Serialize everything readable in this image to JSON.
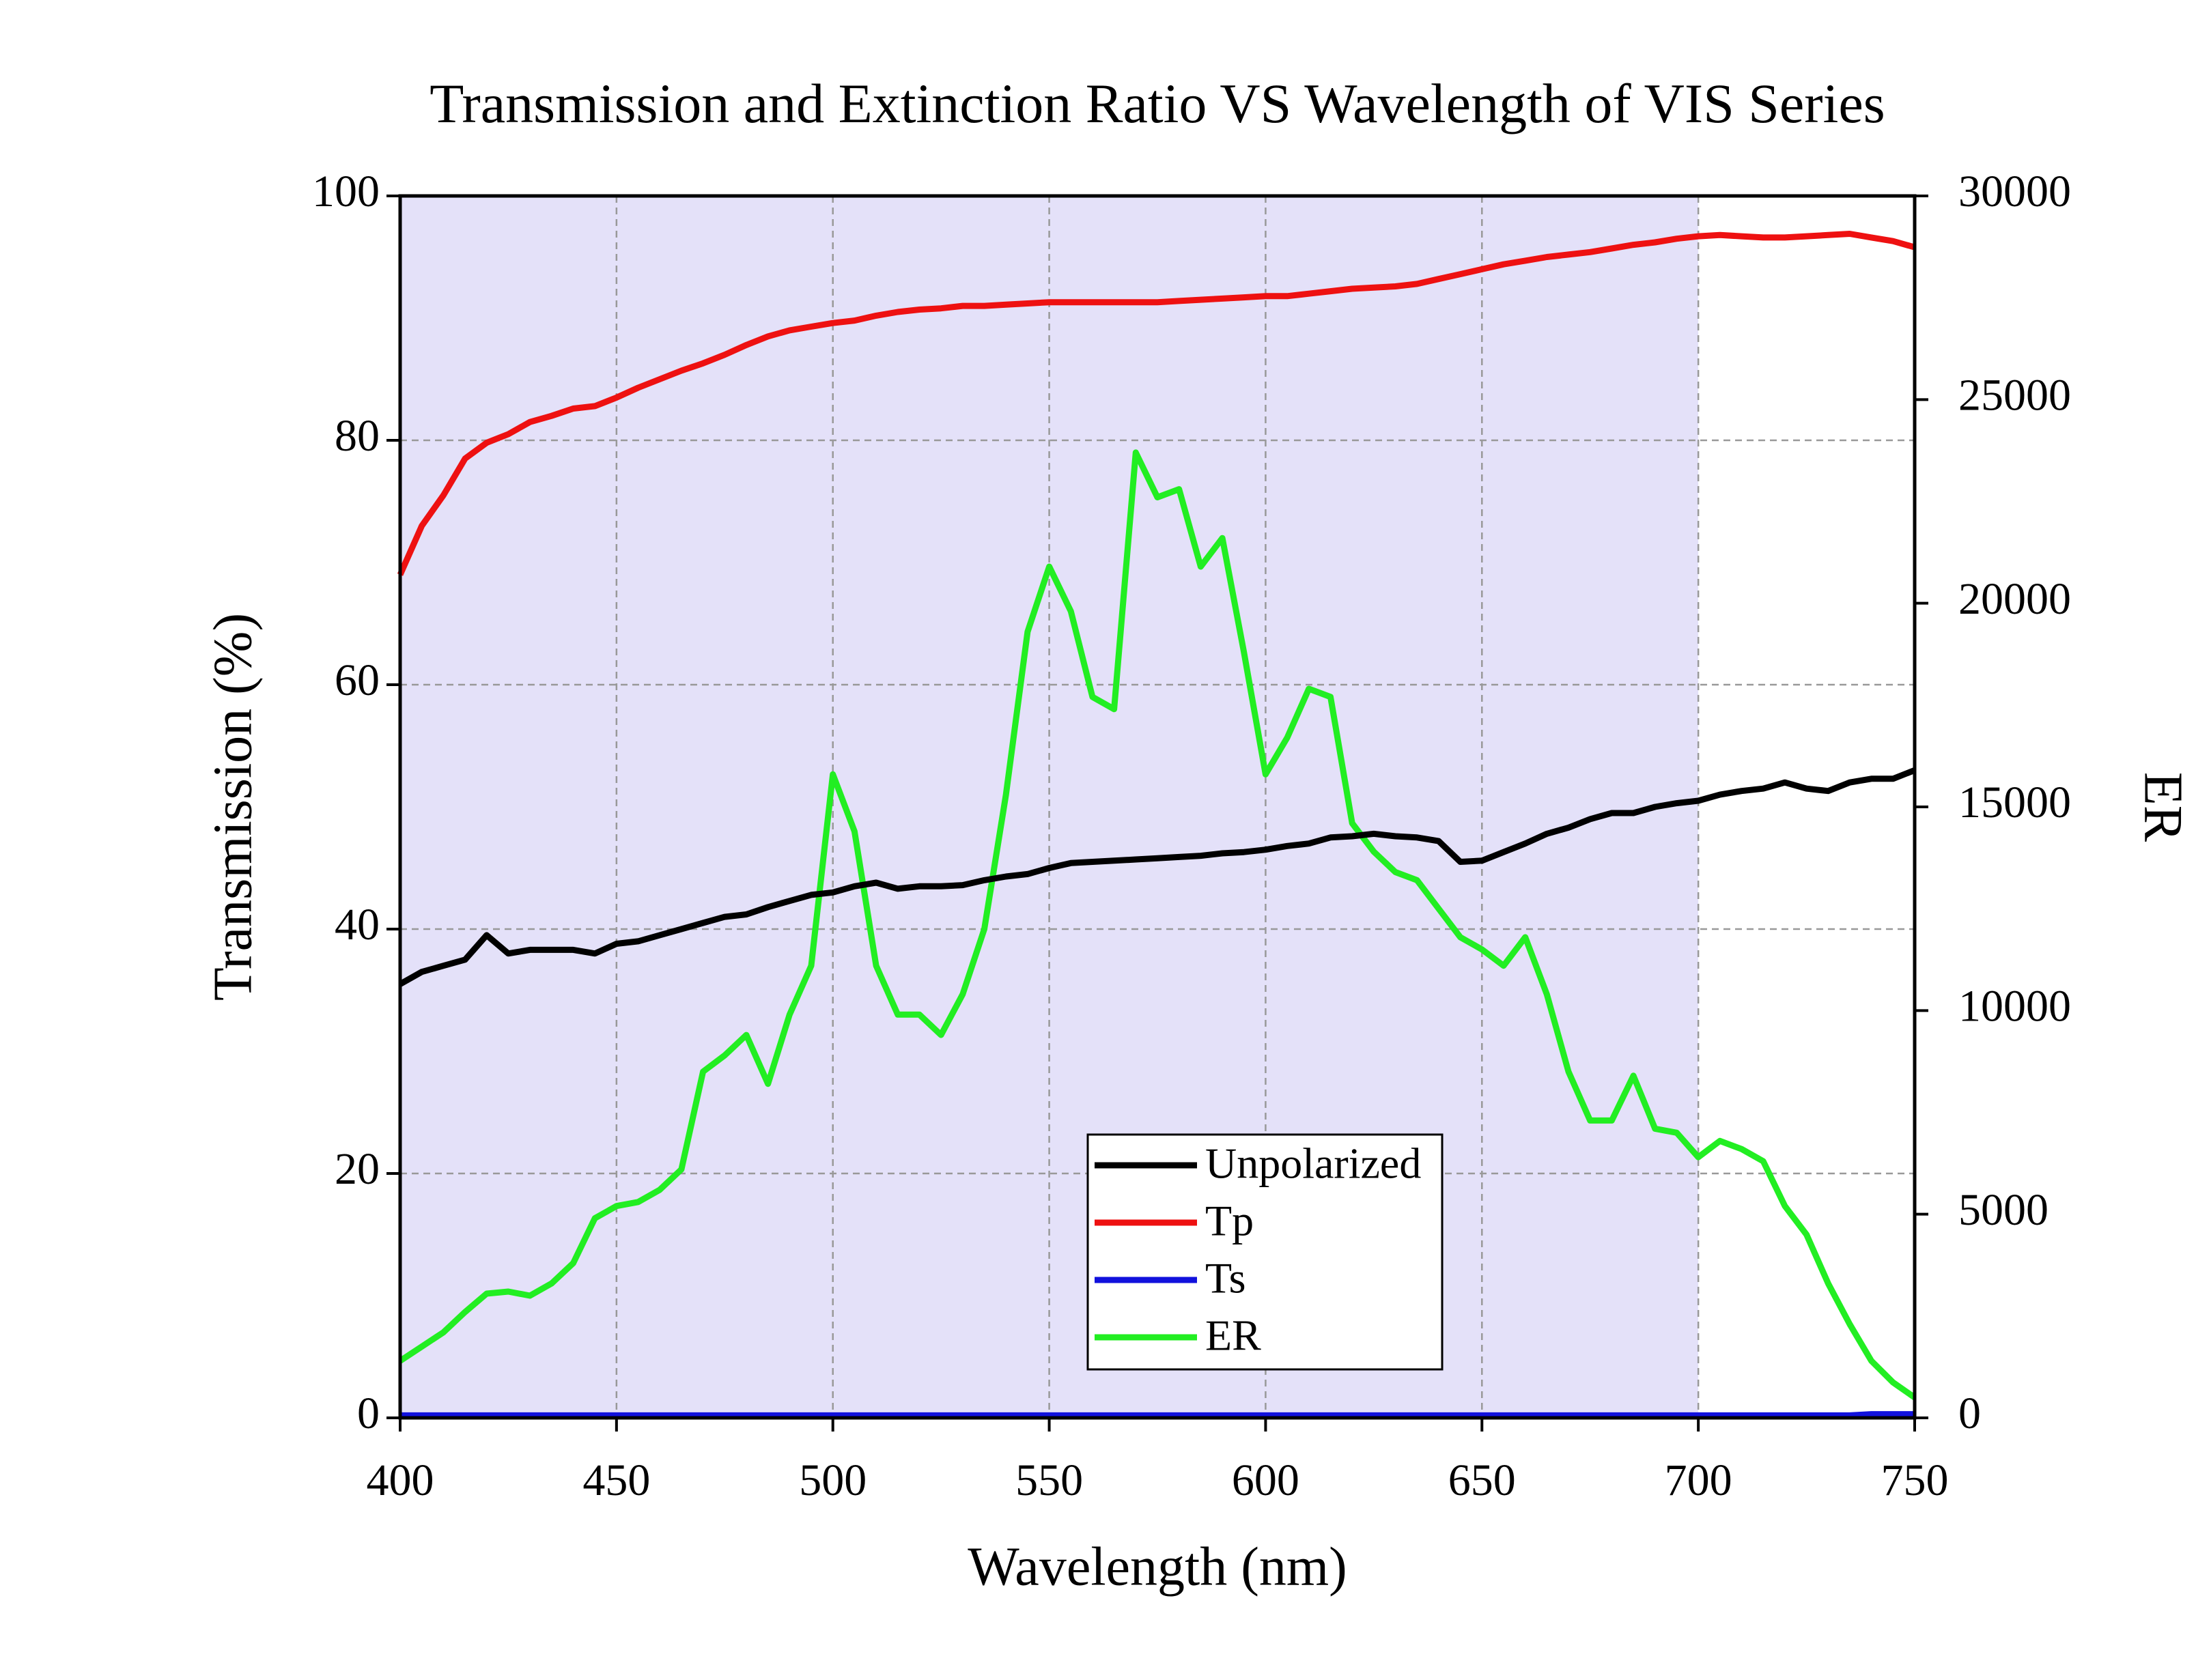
{
  "chart_data": {
    "type": "line",
    "title": "Transmission and Extinction Ratio VS Wavelength of VIS Series",
    "x_label": "Wavelength (nm)",
    "y_label": "Transmission (%)",
    "y2_label": "ER",
    "x": [
      400,
      405,
      410,
      415,
      420,
      425,
      430,
      435,
      440,
      445,
      450,
      455,
      460,
      465,
      470,
      475,
      480,
      485,
      490,
      495,
      500,
      505,
      510,
      515,
      520,
      525,
      530,
      535,
      540,
      545,
      550,
      555,
      560,
      565,
      570,
      575,
      580,
      585,
      590,
      595,
      600,
      605,
      610,
      615,
      620,
      625,
      630,
      635,
      640,
      645,
      650,
      655,
      660,
      665,
      670,
      675,
      680,
      685,
      690,
      695,
      700,
      705,
      710,
      715,
      720,
      725,
      730,
      735,
      740,
      745,
      750
    ],
    "series": [
      {
        "name": "Unpolarized",
        "color": "#000000",
        "values": [
          35.5,
          36.5,
          37,
          37.5,
          39.5,
          38,
          38.3,
          38.3,
          38.3,
          38,
          38.8,
          39,
          39.5,
          40,
          40.5,
          41,
          41.2,
          41.8,
          42.3,
          42.8,
          43,
          43.5,
          43.8,
          43.3,
          43.5,
          43.5,
          43.6,
          44,
          44.3,
          44.5,
          45,
          45.4,
          45.5,
          45.6,
          45.7,
          45.8,
          45.9,
          46,
          46.2,
          46.3,
          46.5,
          46.8,
          47,
          47.5,
          47.6,
          47.8,
          47.6,
          47.5,
          47.2,
          45.5,
          45.6,
          46.3,
          47,
          47.8,
          48.3,
          49,
          49.5,
          49.5,
          50,
          50.3,
          50.5,
          51,
          51.3,
          51.5,
          52,
          51.5,
          51.3,
          52,
          52.3,
          52.3,
          53
        ]
      },
      {
        "name": "Tp",
        "color": "#ee1111",
        "values": [
          69,
          73,
          75.5,
          78.5,
          79.8,
          80.5,
          81.5,
          82,
          82.6,
          82.8,
          83.5,
          84.3,
          85,
          85.7,
          86.3,
          87,
          87.8,
          88.5,
          89,
          89.3,
          89.6,
          89.8,
          90.2,
          90.5,
          90.7,
          90.8,
          91,
          91,
          91.1,
          91.2,
          91.3,
          91.3,
          91.3,
          91.3,
          91.3,
          91.3,
          91.4,
          91.5,
          91.6,
          91.7,
          91.8,
          91.8,
          92,
          92.2,
          92.4,
          92.5,
          92.6,
          92.8,
          93.2,
          93.6,
          94,
          94.4,
          94.7,
          95,
          95.2,
          95.4,
          95.7,
          96,
          96.2,
          96.5,
          96.7,
          96.8,
          96.7,
          96.6,
          96.6,
          96.7,
          96.8,
          96.9,
          96.6,
          96.3,
          95.8
        ]
      },
      {
        "name": "Ts",
        "color": "#1111dd",
        "values": [
          0.2,
          0.2,
          0.2,
          0.2,
          0.2,
          0.2,
          0.2,
          0.2,
          0.2,
          0.2,
          0.2,
          0.2,
          0.2,
          0.2,
          0.2,
          0.2,
          0.2,
          0.2,
          0.2,
          0.2,
          0.2,
          0.2,
          0.2,
          0.2,
          0.2,
          0.2,
          0.2,
          0.2,
          0.2,
          0.2,
          0.2,
          0.2,
          0.2,
          0.2,
          0.2,
          0.2,
          0.2,
          0.2,
          0.2,
          0.2,
          0.2,
          0.2,
          0.2,
          0.2,
          0.2,
          0.2,
          0.2,
          0.2,
          0.2,
          0.2,
          0.2,
          0.2,
          0.2,
          0.2,
          0.2,
          0.2,
          0.2,
          0.2,
          0.2,
          0.2,
          0.2,
          0.2,
          0.2,
          0.2,
          0.2,
          0.2,
          0.2,
          0.2,
          0.3,
          0.3,
          0.3
        ]
      },
      {
        "name": "ER",
        "color": "#22ee22",
        "axis": "y2",
        "values": [
          1400,
          1750,
          2100,
          2600,
          3050,
          3100,
          3000,
          3300,
          3800,
          4900,
          5200,
          5300,
          5600,
          6100,
          8500,
          8900,
          9400,
          8200,
          9900,
          11100,
          15800,
          14400,
          11100,
          9900,
          9900,
          9400,
          10400,
          12000,
          15300,
          19300,
          20900,
          19800,
          17700,
          17400,
          23700,
          22600,
          22800,
          20900,
          21600,
          18800,
          15800,
          16700,
          17900,
          17700,
          14600,
          13900,
          13400,
          13200,
          12500,
          11800,
          11500,
          11100,
          11800,
          10400,
          8500,
          7300,
          7300,
          8400,
          7100,
          7000,
          6400,
          6800,
          6600,
          6300,
          5200,
          4500,
          3300,
          2300,
          1400,
          870,
          500
        ]
      }
    ],
    "xlim": [
      400,
      750
    ],
    "xticks": [
      400,
      450,
      500,
      550,
      600,
      650,
      700,
      750
    ],
    "ylim": [
      0,
      100
    ],
    "yticks": [
      0,
      20,
      40,
      60,
      80,
      100
    ],
    "y2lim": [
      0,
      30000
    ],
    "y2ticks": [
      0,
      5000,
      10000,
      15000,
      20000,
      25000,
      30000
    ],
    "grid": true,
    "shaded_range": [
      400,
      700
    ],
    "shade_color": "#e4e1f9",
    "legend": "lower center"
  }
}
